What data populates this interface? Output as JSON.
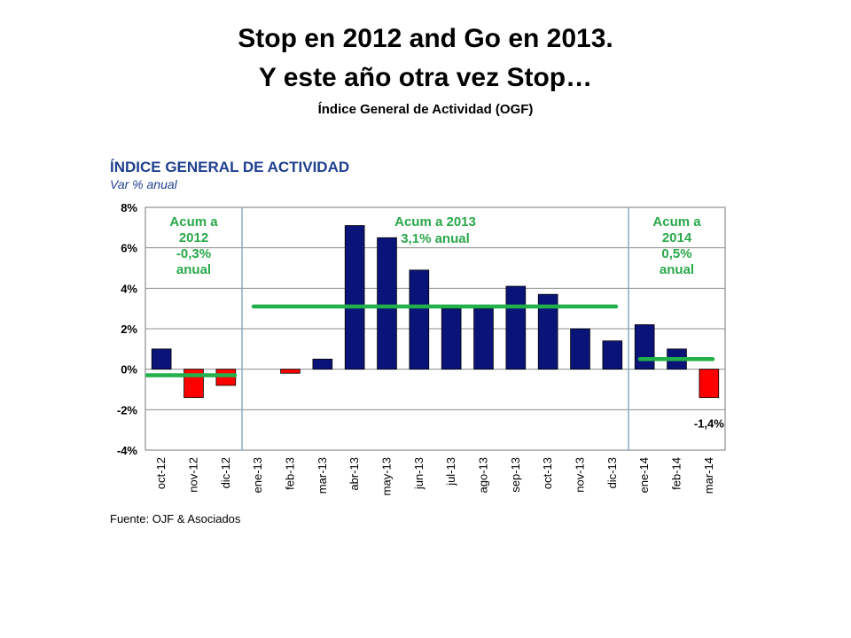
{
  "slide": {
    "title_line1": "Stop en 2012 and Go en 2013.",
    "title_line2": "Y este año otra vez Stop…",
    "subtitle": "Índice General de Actividad (OGF)"
  },
  "chart_data": {
    "type": "bar",
    "title": "ÍNDICE GENERAL DE ACTIVIDAD",
    "subtitle": "Var % anual",
    "source": "Fuente: OJF & Asociados",
    "categories": [
      "oct-12",
      "nov-12",
      "dic-12",
      "ene-13",
      "feb-13",
      "mar-13",
      "abr-13",
      "may-13",
      "jun-13",
      "jul-13",
      "ago-13",
      "sep-13",
      "oct-13",
      "nov-13",
      "dic-13",
      "ene-14",
      "feb-14",
      "mar-14"
    ],
    "values": [
      1.0,
      -1.4,
      -0.8,
      0.0,
      -0.2,
      0.5,
      7.1,
      6.5,
      4.9,
      3.0,
      3.0,
      4.1,
      3.7,
      2.0,
      1.4,
      2.2,
      1.0,
      -1.4
    ],
    "ylim": [
      -4,
      8
    ],
    "yticks": [
      8,
      6,
      4,
      2,
      0,
      -2,
      -4
    ],
    "ytick_labels": [
      "8%",
      "6%",
      "4%",
      "2%",
      "0%",
      "-2%",
      "-4%"
    ],
    "grid": true,
    "colors": {
      "positive": "#0a1478",
      "negative": "#ff0000",
      "average": "#22b04a",
      "text_green": "#2aa84a",
      "title": "#1f3f8f",
      "divider": "#8aaac8"
    },
    "periods": [
      {
        "label_lines": [
          "Acum a",
          "2012",
          "-0,3%",
          "anual"
        ],
        "average": -0.3,
        "start": 0,
        "end": 2
      },
      {
        "label_lines": [
          "Acum a 2013",
          "3,1% anual"
        ],
        "average": 3.1,
        "start": 3,
        "end": 14
      },
      {
        "label_lines": [
          "Acum a",
          "2014",
          "0,5%",
          "anual"
        ],
        "average": 0.5,
        "start": 15,
        "end": 17
      }
    ],
    "annotations": [
      {
        "text": "-1,4%",
        "index": 17
      }
    ]
  }
}
